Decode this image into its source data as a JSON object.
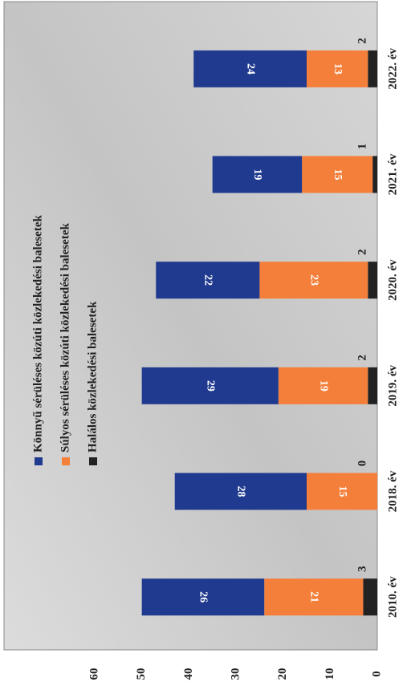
{
  "chart_data": {
    "type": "stacked-bar",
    "categories": [
      "2010. év",
      "2018. év",
      "2019. év",
      "2020. év",
      "2021. év",
      "2022. év"
    ],
    "series": [
      {
        "name": "Halálos közlekedési balesetek",
        "color": "#222222",
        "values": [
          3,
          0,
          2,
          2,
          1,
          2
        ]
      },
      {
        "name": "Súlyos sérüléses közúti közlekedési balesetek",
        "color": "#f47f3a",
        "values": [
          21,
          15,
          19,
          23,
          15,
          13
        ]
      },
      {
        "name": "Könnyű sérüléses közúti közlekedési balesetek",
        "color": "#1f3a8f",
        "values": [
          26,
          28,
          29,
          22,
          19,
          24
        ]
      }
    ],
    "ylim": [
      0,
      60
    ],
    "yticks": [
      0,
      10,
      20,
      30,
      40,
      50,
      60
    ]
  }
}
